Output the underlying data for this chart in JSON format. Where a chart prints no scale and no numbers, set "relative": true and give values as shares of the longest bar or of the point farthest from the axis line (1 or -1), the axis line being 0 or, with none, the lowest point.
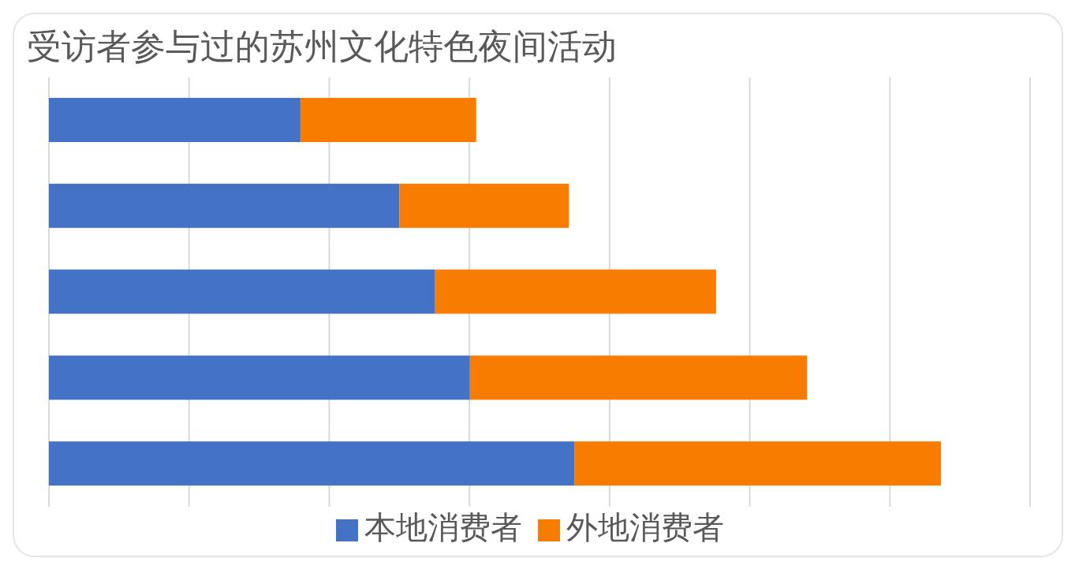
{
  "chart_data": {
    "type": "bar",
    "title": "受访者参与过的苏州文化特色夜间活动",
    "orientation": "horizontal",
    "stacked": true,
    "relative": true,
    "grid": "x",
    "legend": "bottom",
    "categories": [
      null,
      null,
      null,
      null,
      null
    ],
    "series": [
      {
        "name": "本地消费者",
        "color": "#4472c4",
        "values": [
          0.282,
          0.393,
          0.433,
          0.472,
          0.589
        ]
      },
      {
        "name": "外地消费者",
        "color": "#f77c00",
        "values": [
          0.197,
          0.19,
          0.315,
          0.378,
          0.411
        ]
      }
    ]
  }
}
